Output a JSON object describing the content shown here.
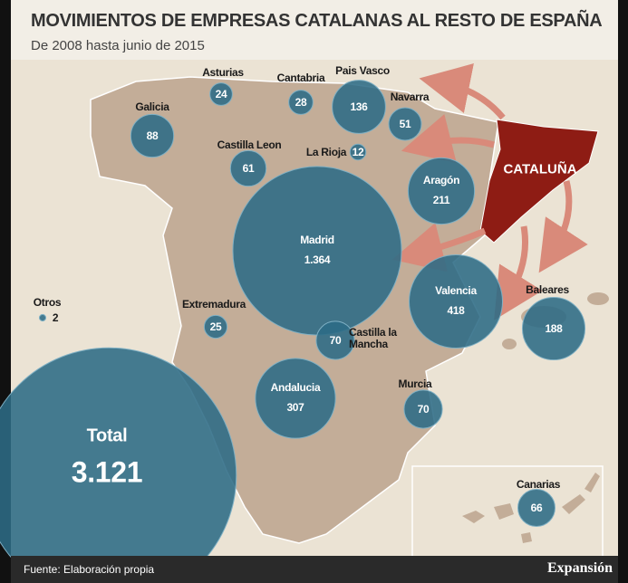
{
  "header": {
    "title": "MOVIMIENTOS DE EMPRESAS CATALANAS AL RESTO DE ESPAÑA",
    "subtitle": "De 2008 hasta junio de 2015"
  },
  "highlight": "CATALUÑA",
  "regions": [
    {
      "name": "Galicia",
      "value": 88
    },
    {
      "name": "Asturias",
      "value": 24
    },
    {
      "name": "Cantabria",
      "value": 28
    },
    {
      "name": "Pais Vasco",
      "value": 136
    },
    {
      "name": "Navarra",
      "value": 51
    },
    {
      "name": "La Rioja",
      "value": 12
    },
    {
      "name": "Castilla Leon",
      "value": 61
    },
    {
      "name": "Aragón",
      "value": 211
    },
    {
      "name": "Madrid",
      "value": 1364,
      "value_label": "1.364"
    },
    {
      "name": "Valencia",
      "value": 418
    },
    {
      "name": "Baleares",
      "value": 188
    },
    {
      "name": "Extremadura",
      "value": 25
    },
    {
      "name": "Castilla la Mancha",
      "value": 70
    },
    {
      "name": "Murcia",
      "value": 70
    },
    {
      "name": "Andalucia",
      "value": 307
    },
    {
      "name": "Canarias",
      "value": 66
    },
    {
      "name": "Otros",
      "value": 2
    }
  ],
  "total": {
    "name": "Total",
    "value": 3121,
    "value_label": "3.121"
  },
  "source": "Fuente: Elaboración propia",
  "brand": "Expansión"
}
